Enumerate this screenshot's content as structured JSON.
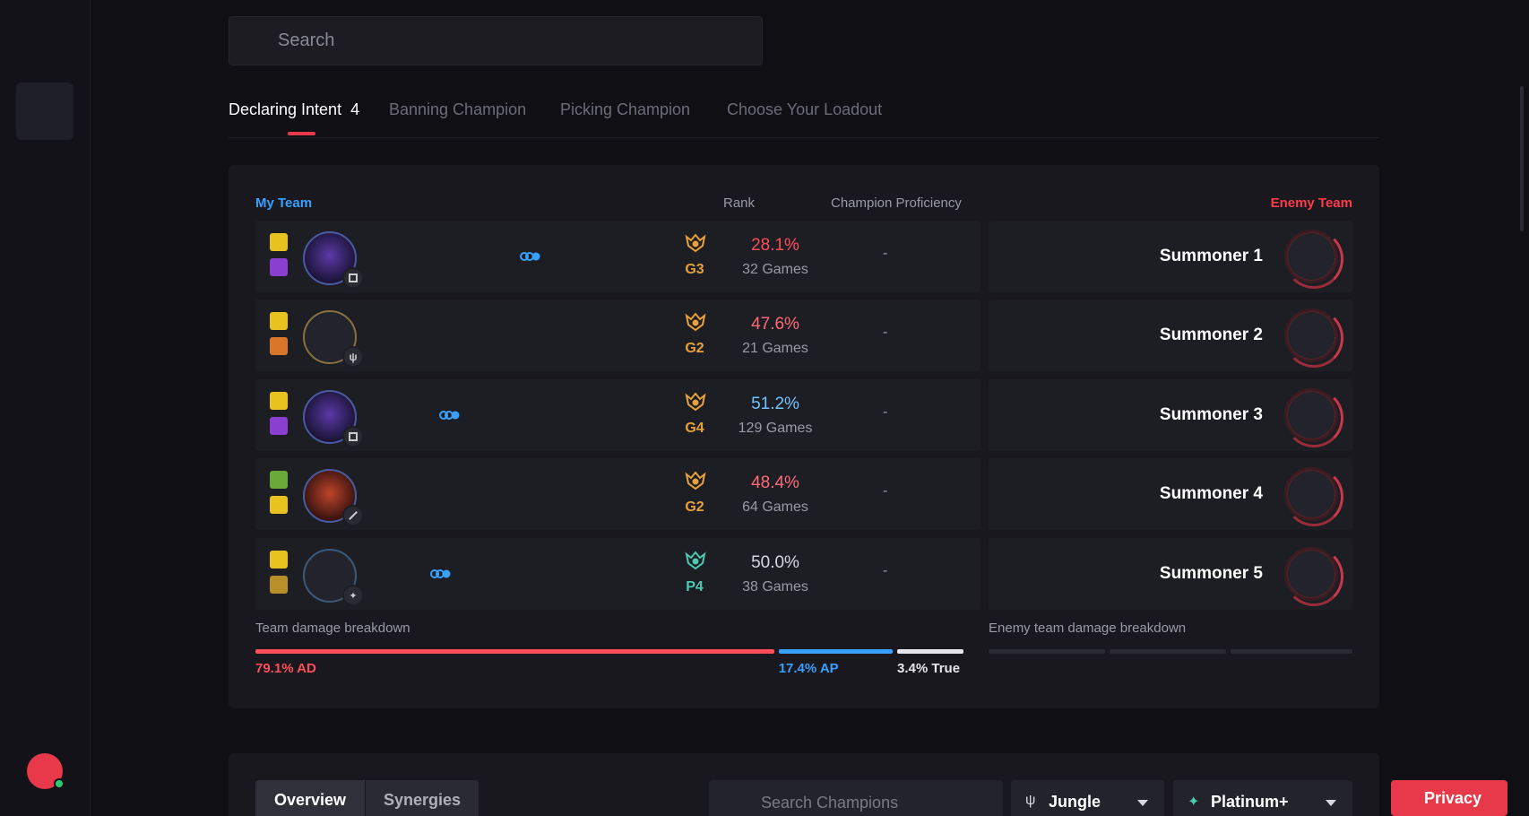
{
  "search": {
    "placeholder": "Search"
  },
  "tabs": [
    {
      "label": "Declaring Intent",
      "count": "4"
    },
    {
      "label": "Banning Champion"
    },
    {
      "label": "Picking Champion"
    },
    {
      "label": "Choose Your Loadout"
    }
  ],
  "team": {
    "my_team_label": "My Team",
    "rank_header": "Rank",
    "proficiency_header": "Champion Proficiency",
    "enemy_team_label": "Enemy Team",
    "colors": {
      "my_team": "#3aa0ff",
      "enemy_team": "#ff3b4a",
      "gold": "#e8a23a",
      "platinum": "#4dc9b0"
    },
    "players": [
      {
        "tier": "G3",
        "winrate": "28.1%",
        "games": "32 Games",
        "proficiency": "-",
        "winrate_color": "#ff4d5a",
        "role_icon": "support-icon"
      },
      {
        "tier": "G2",
        "winrate": "47.6%",
        "games": "21 Games",
        "proficiency": "-",
        "winrate_color": "#ff6b78",
        "role_icon": "jungle-icon"
      },
      {
        "tier": "G4",
        "winrate": "51.2%",
        "games": "129 Games",
        "proficiency": "-",
        "winrate_color": "#6fc3ff",
        "role_icon": "support-icon"
      },
      {
        "tier": "G2",
        "winrate": "48.4%",
        "games": "64 Games",
        "proficiency": "-",
        "winrate_color": "#ff6b78",
        "role_icon": "mid-icon"
      },
      {
        "tier": "P4",
        "winrate": "50.0%",
        "games": "38 Games",
        "proficiency": "-",
        "winrate_color": "#d8d8e0",
        "role_icon": "adc-icon"
      }
    ],
    "enemies": [
      {
        "name": "Summoner 1"
      },
      {
        "name": "Summoner 2"
      },
      {
        "name": "Summoner 3"
      },
      {
        "name": "Summoner 4"
      },
      {
        "name": "Summoner 5"
      }
    ]
  },
  "damage": {
    "team_label": "Team damage breakdown",
    "enemy_label": "Enemy team damage breakdown",
    "ad": {
      "label": "79.1% AD",
      "value": 79.1,
      "color": "#ff4d5a"
    },
    "ap": {
      "label": "17.4% AP",
      "value": 17.4,
      "color": "#3aa0ff"
    },
    "true": {
      "label": "3.4% True",
      "value": 3.4,
      "color": "#e6e6ea"
    }
  },
  "bottom": {
    "tabs": [
      "Overview",
      "Synergies"
    ],
    "search_placeholder": "Search Champions",
    "role_dropdown": "Jungle",
    "rank_dropdown": "Platinum+"
  },
  "privacy_label": "Privacy"
}
